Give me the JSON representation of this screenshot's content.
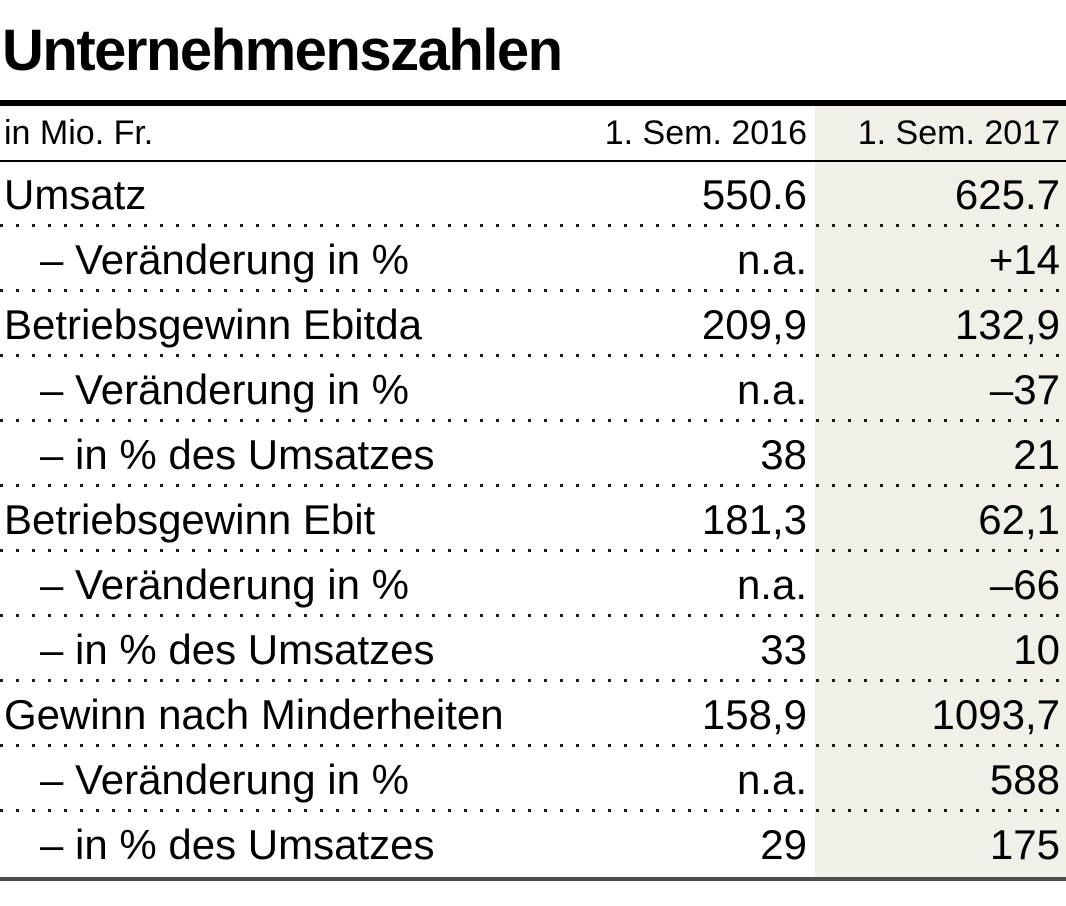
{
  "colors": {
    "highlight_column_bg": "#f0efe8",
    "bottom_rule": "#4d4d4d",
    "top_rule": "#000000",
    "dotted_separator": "#1a1a1a"
  },
  "chart_data": {
    "type": "table",
    "title": "Unternehmenszahlen",
    "columns": [
      "in Mio. Fr.",
      "1. Sem. 2016",
      "1. Sem. 2017"
    ],
    "layout": {
      "highlighted_column": "1. Sem. 2017",
      "row_separator": "dotted",
      "value_alignment": "right"
    },
    "rows": [
      {
        "label": "Umsatz",
        "v2016": "550.6",
        "v2017": "625.7",
        "indent": false
      },
      {
        "label": "– Veränderung in %",
        "v2016": "n.a.",
        "v2017": "+14",
        "indent": true
      },
      {
        "label": "Betriebsgewinn Ebitda",
        "v2016": "209,9",
        "v2017": "132,9",
        "indent": false
      },
      {
        "label": "– Veränderung in %",
        "v2016": "n.a.",
        "v2017": "–37",
        "indent": true
      },
      {
        "label": "– in % des Umsatzes",
        "v2016": "38",
        "v2017": "21",
        "indent": true
      },
      {
        "label": "Betriebsgewinn Ebit",
        "v2016": "181,3",
        "v2017": "62,1",
        "indent": false
      },
      {
        "label": "– Veränderung in %",
        "v2016": "n.a.",
        "v2017": "–66",
        "indent": true
      },
      {
        "label": "– in % des Umsatzes",
        "v2016": "33",
        "v2017": "10",
        "indent": true
      },
      {
        "label": "Gewinn nach Minderheiten",
        "v2016": "158,9",
        "v2017": "1093,7",
        "indent": false
      },
      {
        "label": "– Veränderung in %",
        "v2016": "n.a.",
        "v2017": "588",
        "indent": true
      },
      {
        "label": "– in % des Umsatzes",
        "v2016": "29",
        "v2017": "175",
        "indent": true
      }
    ]
  }
}
